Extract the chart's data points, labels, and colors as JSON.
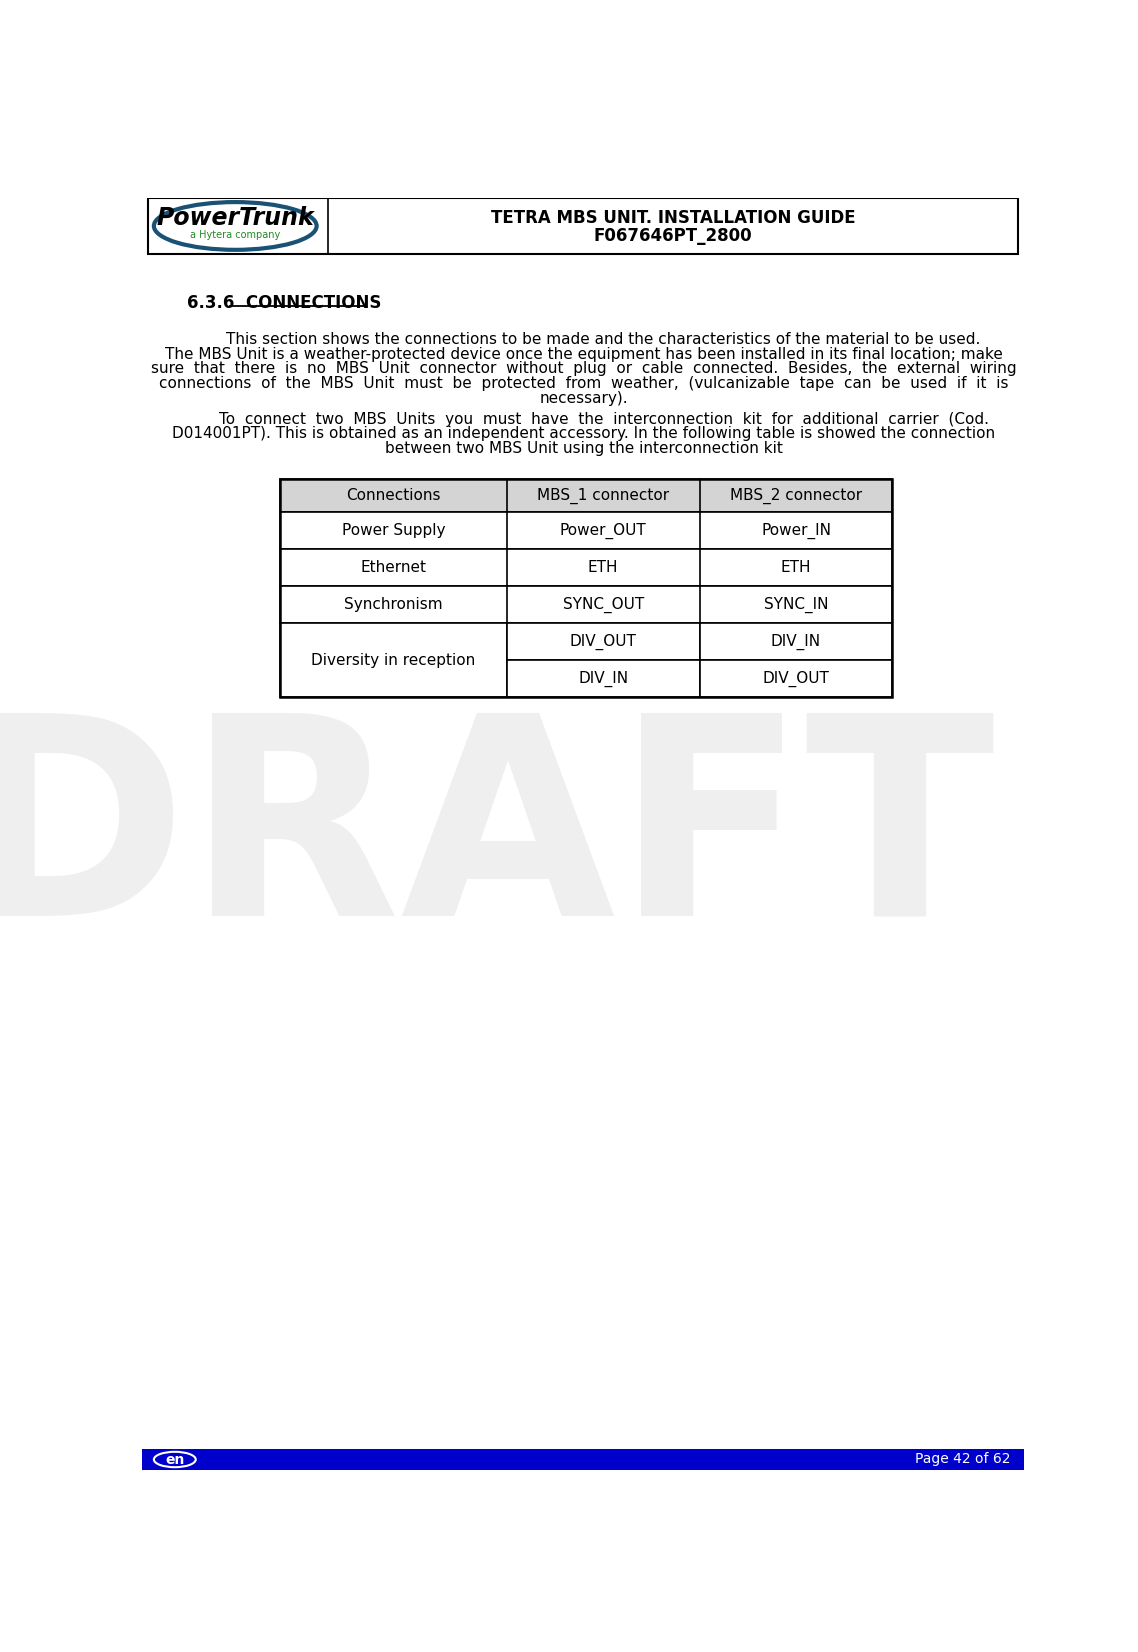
{
  "page_title_line1": "TETRA MBS UNIT. INSTALLATION GUIDE",
  "page_title_line2": "F067646PT_2800",
  "section_heading_prefix": "6.3.6  ",
  "section_heading_underlined": "CONNECTIONS",
  "para1_indent": "        This section shows the connections to be made and the characteristics of the material to be used.",
  "para1_rest": "The MBS Unit is a weather-protected device once the equipment has been installed in its final location; make sure  that  there  is  no  MBS  Unit  connector  without  plug  or  cable  connected.  Besides,  the  external  wiring connections  of  the  MBS  Unit  must  be  protected  from  weather,  (vulcanizable  tape  can  be  used  if  it  is necessary).",
  "para2_indent": "        To  connect  two  MBS  Units  you  must  have  the  interconnection  kit  for  additional  carrier  (Cod. D014001PT). This is obtained as an independent accessory. In the following table is showed the connection between two MBS Unit using the interconnection kit",
  "table_header": [
    "Connections",
    "MBS_1 connector",
    "MBS_2 connector"
  ],
  "table_rows": [
    [
      "Power Supply",
      "Power_OUT",
      "Power_IN"
    ],
    [
      "Ethernet",
      "ETH",
      "ETH"
    ],
    [
      "Synchronism",
      "SYNC_OUT",
      "SYNC_IN"
    ],
    [
      "Diversity in reception",
      "DIV_OUT",
      "DIV_IN"
    ],
    [
      "",
      "DIV_IN",
      "DIV_OUT"
    ]
  ],
  "footer_left": "en",
  "footer_right": "Page 42 of 62",
  "footer_bg": "#0000cc",
  "table_header_bg": "#d4d4d4",
  "text_color": "#000000",
  "footer_text_color": "#ffffff",
  "draft_text": "DRAFT",
  "draft_color": "#cccccc",
  "logo_text": "PowerTrunk",
  "logo_sub": "a Hytera company",
  "logo_ellipse_color": "#1a5276",
  "logo_sub_color": "#228B22"
}
